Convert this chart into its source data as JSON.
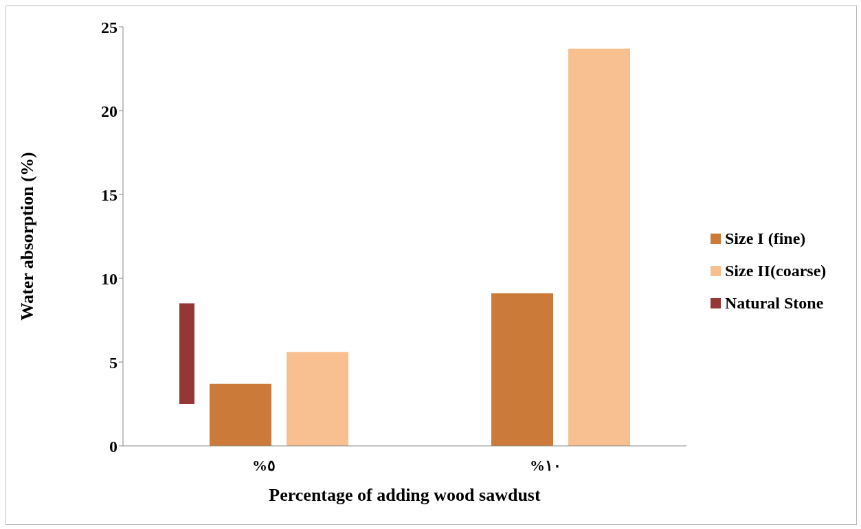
{
  "chart_data": {
    "type": "bar",
    "xlabel": "Percentage of adding wood sawdust",
    "ylabel": "Water  absorption (%)",
    "categories": [
      "%٥",
      "%١٠"
    ],
    "series": [
      {
        "name": "Size I (fine)",
        "color": "#cb7a39",
        "values": [
          3.7,
          9.1
        ]
      },
      {
        "name": "Size II(coarse)",
        "color": "#f8c090",
        "values": [
          5.6,
          23.7
        ]
      },
      {
        "name": "Natural Stone",
        "color": "#953735",
        "values": [
          6.0,
          null
        ],
        "base": [
          2.5,
          null
        ]
      }
    ],
    "ylim": [
      0,
      25
    ],
    "yticks": [
      0,
      5,
      10,
      15,
      20,
      25
    ],
    "legend": "right"
  }
}
